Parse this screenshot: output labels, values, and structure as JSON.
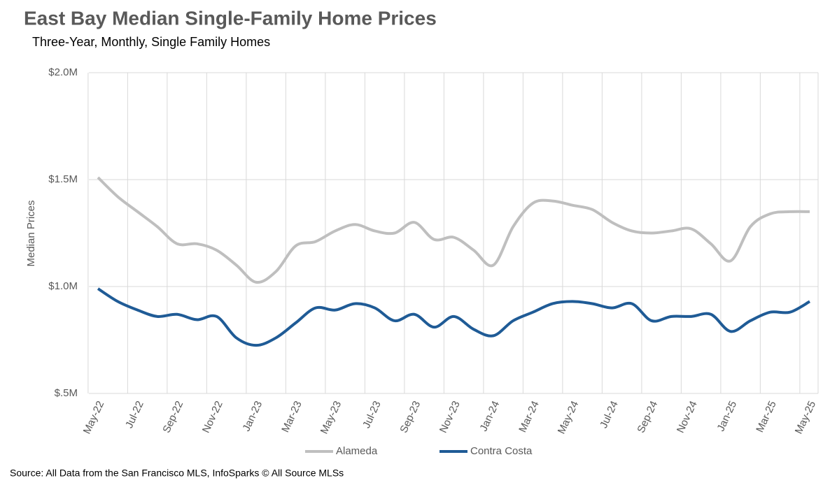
{
  "chart_data": {
    "type": "line",
    "title": "East Bay Median Single-Family Home Prices",
    "subtitle": "Three-Year, Monthly, Single Family Homes",
    "y_label": "Median Prices",
    "source": "Source: All Data from the San Francisco MLS, InfoSparks © All Source MLSs",
    "categories": [
      "May-22",
      null,
      "Jul-22",
      null,
      "Sep-22",
      null,
      "Nov-22",
      null,
      "Jan-23",
      null,
      "Mar-23",
      null,
      "May-23",
      null,
      "Jul-23",
      null,
      "Sep-23",
      null,
      "Nov-23",
      null,
      "Jan-24",
      null,
      "Mar-24",
      null,
      "May-24",
      null,
      "Jul-24",
      null,
      "Sep-24",
      null,
      "Nov-24",
      null,
      "Jan-25",
      null,
      "Mar-25",
      null,
      "May-25"
    ],
    "series": [
      {
        "name": "Alameda",
        "color": "#bfbfbf",
        "values": [
          1510000,
          1420000,
          1350000,
          1280000,
          1200000,
          1200000,
          1170000,
          1100000,
          1020000,
          1070000,
          1190000,
          1210000,
          1260000,
          1290000,
          1260000,
          1250000,
          1300000,
          1220000,
          1230000,
          1170000,
          1100000,
          1280000,
          1390000,
          1400000,
          1380000,
          1360000,
          1300000,
          1260000,
          1250000,
          1260000,
          1270000,
          1200000,
          1120000,
          1280000,
          1340000,
          1350000,
          1350000
        ]
      },
      {
        "name": "Contra Costa",
        "color": "#1f5b96",
        "values": [
          990000,
          930000,
          890000,
          860000,
          870000,
          845000,
          860000,
          760000,
          725000,
          760000,
          830000,
          900000,
          890000,
          920000,
          900000,
          840000,
          870000,
          810000,
          860000,
          800000,
          770000,
          840000,
          880000,
          920000,
          930000,
          920000,
          900000,
          920000,
          840000,
          860000,
          860000,
          870000,
          790000,
          840000,
          880000,
          880000,
          930000
        ]
      }
    ],
    "ylim": [
      500000,
      2000000
    ],
    "yticks": [
      {
        "value": 500000,
        "label": "$.5M"
      },
      {
        "value": 1000000,
        "label": "$1.0M"
      },
      {
        "value": 1500000,
        "label": "$1.5M"
      },
      {
        "value": 2000000,
        "label": "$2.0M"
      }
    ],
    "grid": true,
    "legend": "bottom"
  }
}
